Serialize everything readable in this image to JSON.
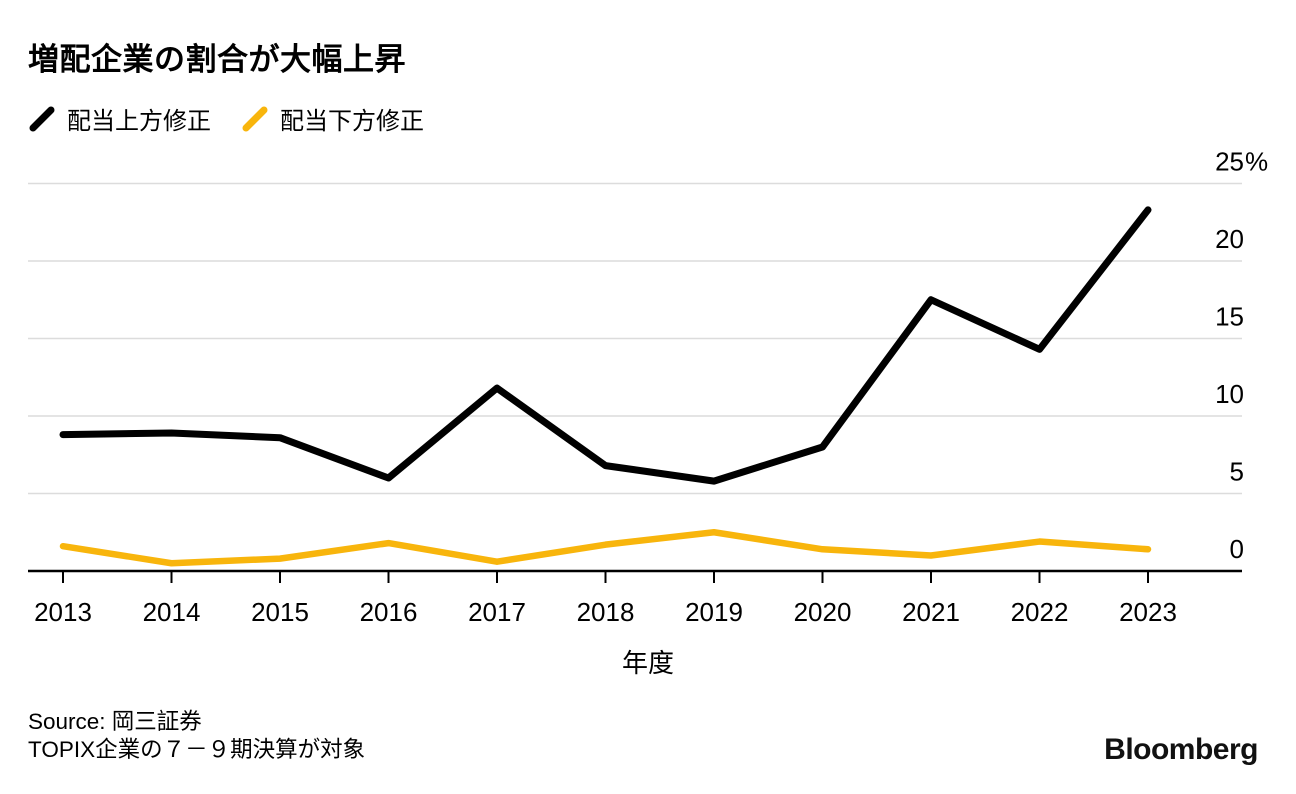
{
  "title": "増配企業の割合が大幅上昇",
  "legend": [
    {
      "label": "配当上方修正",
      "color": "#000000",
      "icon": "black-slash-icon"
    },
    {
      "label": "配当下方修正",
      "color": "#F8B50C",
      "icon": "yellow-slash-icon"
    }
  ],
  "chart_data": {
    "type": "line",
    "x": [
      2013,
      2014,
      2015,
      2016,
      2017,
      2018,
      2019,
      2020,
      2021,
      2022,
      2023
    ],
    "series": [
      {
        "name": "配当上方修正",
        "color": "#000000",
        "stroke_width": 7,
        "values": [
          8.8,
          8.9,
          8.6,
          6.0,
          11.8,
          6.8,
          5.8,
          8.0,
          17.5,
          14.3,
          23.3
        ]
      },
      {
        "name": "配当下方修正",
        "color": "#F8B50C",
        "stroke_width": 6.5,
        "values": [
          1.6,
          0.5,
          0.8,
          1.8,
          0.6,
          1.7,
          2.5,
          1.4,
          1.0,
          1.9,
          1.4
        ]
      }
    ],
    "xlabel": "年度",
    "ylabel": "",
    "ylim": [
      0,
      25
    ],
    "y_ticks": [
      0,
      5,
      10,
      15,
      20,
      25
    ],
    "y_tick_top_suffix": "%",
    "grid": "horizontal",
    "gridline_color": "#dcdcdc",
    "axis_color": "#000000",
    "legend_position": "top-left"
  },
  "footer": {
    "source": "Source: 岡三証券",
    "note": "TOPIX企業の７－９期決算が対象",
    "brand": "Bloomberg"
  }
}
